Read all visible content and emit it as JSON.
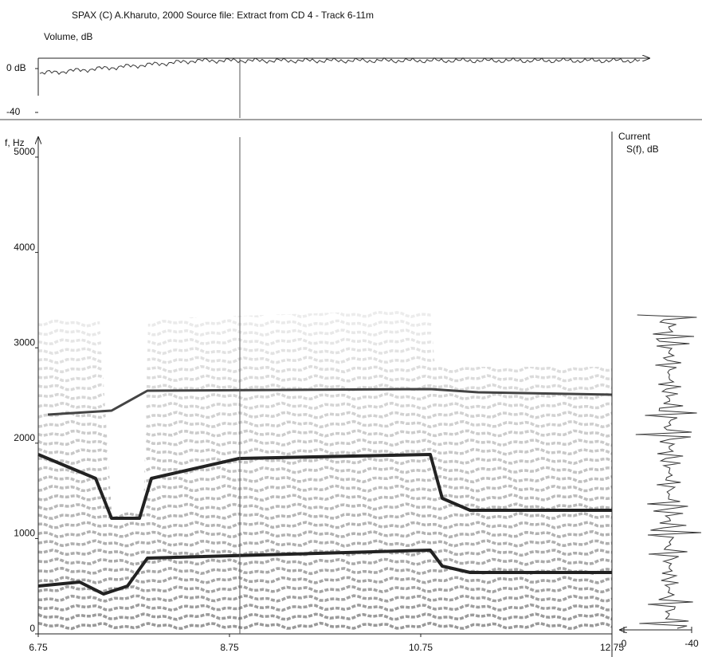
{
  "header": {
    "title": "SPAX  (C)  A.Kharuto,   2000   Source file:  Extract from CD 4 - Track 6-11m"
  },
  "volume": {
    "label": "Volume, dB",
    "ticks": [
      {
        "value": 0,
        "label": "0 dB"
      },
      -40
    ]
  },
  "spectrogram": {
    "y_label": "f, Hz",
    "ylim": [
      0,
      5000
    ],
    "yticks": [
      0,
      1000,
      2000,
      3000,
      4000,
      5000
    ],
    "xlim": [
      6.75,
      12.75
    ],
    "xticks": [
      6.75,
      8.75,
      10.75,
      12.75
    ]
  },
  "current": {
    "label_line1": "Current",
    "label_line2": "S(f), dB",
    "ticks": [
      0,
      -40
    ]
  }
}
